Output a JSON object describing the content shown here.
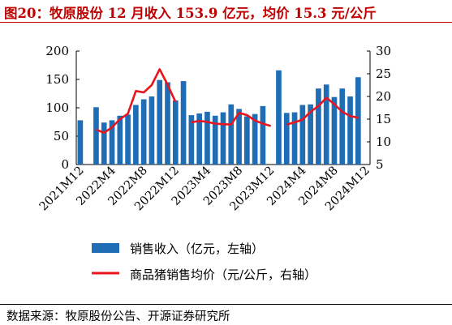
{
  "title": "图20：牧原股份 12 月收入 153.9 亿元，均价 15.3 元/公斤",
  "source": "数据来源：牧原股份公告、开源证券研究所",
  "colors": {
    "title": "#c00000",
    "bars": "#1f6db5",
    "line": "#e8141e"
  },
  "chart_data": {
    "type": "bar",
    "x": [
      "2021M12",
      "2022M1",
      "2022M2",
      "2022M3",
      "2022M4",
      "2022M5",
      "2022M6",
      "2022M7",
      "2022M8",
      "2022M9",
      "2022M10",
      "2022M11",
      "2022M12",
      "2023M1",
      "2023M2",
      "2023M3",
      "2023M4",
      "2023M5",
      "2023M6",
      "2023M7",
      "2023M8",
      "2023M9",
      "2023M10",
      "2023M11",
      "2023M12",
      "2024M1",
      "2024M2",
      "2024M3",
      "2024M4",
      "2024M5",
      "2024M6",
      "2024M7",
      "2024M8",
      "2024M9",
      "2024M10",
      "2024M11",
      "2024M12"
    ],
    "tick_labels": [
      "2021M12",
      "2022M4",
      "2022M8",
      "2022M12",
      "2023M4",
      "2023M8",
      "2023M12",
      "2024M4",
      "2024M8",
      "2024M12"
    ],
    "series": [
      {
        "name": "销售收入（亿元，左轴）",
        "axis": "left",
        "kind": "bar",
        "values": [
          78,
          null,
          101,
          74,
          78,
          86,
          88,
          105,
          115,
          120,
          149,
          145,
          113,
          147,
          87,
          90,
          93,
          86,
          92,
          106,
          98,
          85,
          89,
          103,
          null,
          166,
          91,
          92,
          105,
          106,
          134,
          141,
          119,
          134,
          120,
          153.9,
          null
        ]
      },
      {
        "name": "商品猪销售均价（元/公斤，右轴）",
        "axis": "right",
        "kind": "line",
        "values": [
          null,
          null,
          12.7,
          12.0,
          13.2,
          15.0,
          16.2,
          21.2,
          20.9,
          22.5,
          26.0,
          22.6,
          18.8,
          null,
          14.3,
          14.6,
          14.4,
          14.0,
          13.9,
          13.8,
          16.4,
          15.9,
          14.7,
          14.0,
          13.5,
          null,
          13.8,
          14.3,
          14.9,
          16.6,
          17.9,
          19.7,
          18.3,
          16.6,
          15.7,
          15.3,
          null
        ]
      }
    ],
    "ylim_left": [
      0,
      200
    ],
    "yticks_left": [
      0,
      50,
      100,
      150,
      200
    ],
    "ylim_right": [
      5,
      30
    ],
    "yticks_right": [
      5,
      10,
      15,
      20,
      25,
      30
    ],
    "legend_placement": "bottom",
    "grid": false
  }
}
